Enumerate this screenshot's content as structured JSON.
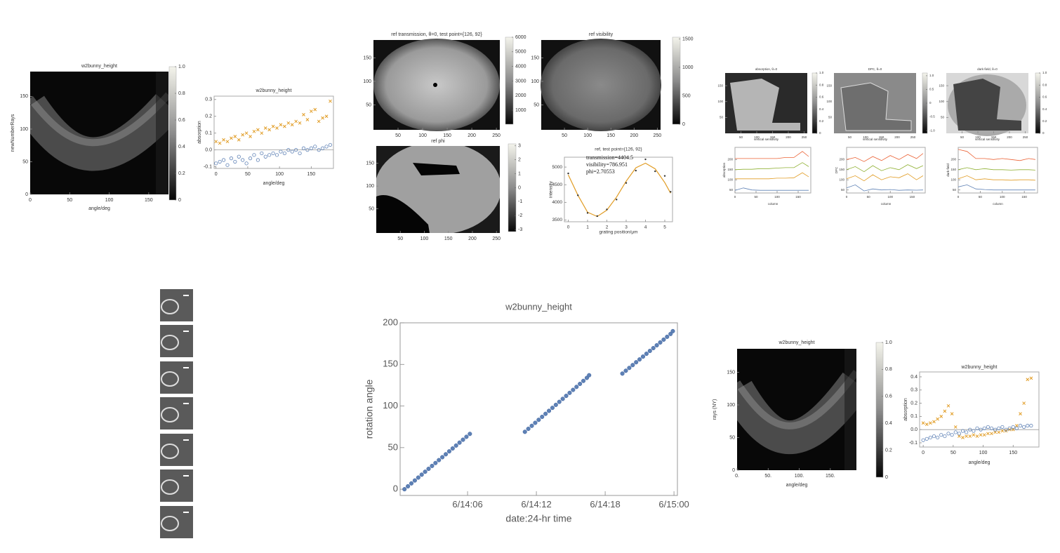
{
  "chart_data": [
    {
      "type": "heatmap",
      "title": "w2bunny_height",
      "xlabel": "angle/deg",
      "ylabel": "newNumberRays",
      "xlim": [
        0,
        175
      ],
      "xticks": [
        0,
        50,
        100,
        150
      ],
      "ylim": [
        0,
        188
      ],
      "yticks": [
        0,
        50,
        100,
        150
      ],
      "colorbar": {
        "lim": [
          0,
          1
        ],
        "ticks": [
          0,
          0.2,
          0.4,
          0.6,
          0.8,
          {
            "value": 1,
            "label": "1.0"
          }
        ]
      }
    },
    {
      "type": "scatter",
      "title": "w2bunny_height",
      "xlabel": "angle/deg",
      "ylabel": "absorption",
      "axes_origin": true,
      "xlim": [
        -3,
        185
      ],
      "xticks": [
        0,
        50,
        100,
        150
      ],
      "ylim": [
        -0.11,
        0.32
      ],
      "yticks": [
        -0.1,
        {
          "value": 0,
          "label": "0.0"
        },
        0.1,
        0.2,
        0.3
      ],
      "x": [
        0,
        6,
        12,
        18,
        24,
        30,
        36,
        42,
        48,
        54,
        60,
        66,
        72,
        78,
        84,
        90,
        96,
        102,
        108,
        114,
        120,
        126,
        132,
        138,
        144,
        150,
        156,
        162,
        168,
        174,
        180
      ],
      "series": [
        {
          "color": "#e19c24",
          "marker": "cross",
          "values": [
            0.05,
            0.04,
            0.06,
            0.05,
            0.07,
            0.08,
            0.06,
            0.09,
            0.1,
            0.08,
            0.11,
            0.12,
            0.1,
            0.13,
            0.12,
            0.14,
            0.13,
            0.15,
            0.14,
            0.16,
            0.15,
            0.17,
            0.16,
            0.21,
            0.18,
            0.23,
            0.24,
            0.17,
            0.19,
            0.2,
            0.29
          ]
        },
        {
          "color": "#5e81b5",
          "marker": "circle",
          "values": [
            -0.08,
            -0.07,
            -0.06,
            -0.09,
            -0.05,
            -0.07,
            -0.04,
            -0.06,
            -0.08,
            -0.05,
            -0.03,
            -0.06,
            -0.02,
            -0.04,
            -0.03,
            -0.02,
            -0.03,
            -0.01,
            -0.02,
            0.0,
            -0.01,
            0.0,
            -0.02,
            0.01,
            0.0,
            0.01,
            0.02,
            0.0,
            0.01,
            0.02,
            0.03
          ]
        }
      ]
    },
    {
      "type": "heatmap",
      "title": "ref transmission, θ=0, test point={126, 92}",
      "xlim": [
        0,
        257
      ],
      "xticks": [
        50,
        100,
        150,
        200,
        250
      ],
      "ylim": [
        -3,
        188
      ],
      "yticks": [
        50,
        100,
        150
      ],
      "colorbar": {
        "lim": [
          40,
          6000
        ],
        "ticks": [
          1000,
          2000,
          3000,
          4000,
          5000,
          6000
        ]
      }
    },
    {
      "type": "heatmap",
      "title": "ref visibility",
      "xlim": [
        0,
        257
      ],
      "xticks": [
        50,
        100,
        150,
        200,
        250
      ],
      "ylim": [
        -3,
        188
      ],
      "yticks": [
        50,
        100,
        150
      ],
      "colorbar": {
        "lim": [
          0,
          1530
        ],
        "ticks": [
          0,
          500,
          1000,
          1500
        ]
      }
    },
    {
      "type": "heatmap",
      "title": "ref phi",
      "xlim": [
        0,
        257
      ],
      "xticks": [
        50,
        100,
        150,
        200,
        250
      ],
      "ylim": [
        -3,
        188
      ],
      "yticks": [
        50,
        100,
        150
      ],
      "colorbar": {
        "lim": [
          -3.14,
          3.14
        ],
        "ticks": [
          -3,
          -2,
          -1,
          0,
          1,
          2,
          3
        ]
      }
    },
    {
      "type": "scatter",
      "title": "ref, test point={126, 92}",
      "xlabel": "grating position/μm",
      "ylabel": "intensity",
      "xlim": [
        -0.2,
        5.4
      ],
      "xticks": [
        0,
        1,
        2,
        3,
        4,
        5
      ],
      "ylim": [
        3450,
        5280
      ],
      "yticks": [
        3500,
        4000,
        4500,
        5000
      ],
      "annotations": [
        "transmission=4404.5",
        "visibility=786.951",
        "phi=2.70553"
      ],
      "x": [
        0,
        0.5,
        1,
        1.5,
        2,
        2.5,
        3,
        3.5,
        4,
        4.5,
        5,
        5.3
      ],
      "series": [
        {
          "color": "#e19c24",
          "marker": "line",
          "values": [
            4780,
            4200,
            3720,
            3600,
            3780,
            4150,
            4600,
            4980,
            5110,
            4950,
            4560,
            4260
          ]
        },
        {
          "color": "#333333",
          "marker": "dot",
          "values": [
            4820,
            4200,
            3700,
            3610,
            3800,
            4080,
            4550,
            4900,
            5220,
            4880,
            4750,
            4300
          ]
        }
      ]
    },
    {
      "type": "heatmap",
      "title": "absorption, θ=0",
      "xlabel": "vertical sensitivity",
      "xlim": [
        0,
        260
      ],
      "xticks": [
        50,
        100,
        150,
        200,
        250
      ],
      "ylim": [
        0,
        190
      ],
      "yticks": [
        50,
        100,
        150
      ],
      "colorbar": {
        "lim": [
          0,
          1
        ],
        "ticks": [
          0,
          0.2,
          0.4,
          0.6,
          0.8,
          {
            "value": 1,
            "label": "1.0"
          }
        ]
      }
    },
    {
      "type": "heatmap",
      "title": "DPC, θ=0",
      "xlabel": "vertical sensitivity",
      "xlim": [
        0,
        260
      ],
      "xticks": [
        50,
        100,
        150,
        200,
        250
      ],
      "ylim": [
        0,
        190
      ],
      "yticks": [
        50,
        100,
        150
      ],
      "colorbar": {
        "lim": [
          -1.1,
          1.1
        ],
        "ticks": [
          {
            "value": -1,
            "label": "-1.0"
          },
          -0.5,
          0,
          0.5,
          {
            "value": 1,
            "label": "1.0"
          }
        ]
      }
    },
    {
      "type": "heatmap",
      "title": "dark-field, θ=0",
      "xlabel": "vertical sensitivity",
      "xlim": [
        0,
        260
      ],
      "xticks": [
        50,
        100,
        150,
        200,
        250
      ],
      "ylim": [
        0,
        190
      ],
      "yticks": [
        50,
        100,
        150
      ],
      "colorbar": {
        "lim": [
          0,
          1
        ],
        "ticks": [
          0,
          0.2,
          0.4,
          0.6,
          0.8,
          {
            "value": 1,
            "label": "1.0"
          }
        ]
      }
    },
    {
      "type": "line",
      "xlabel": "column",
      "ylabel": "absorption",
      "xlim": [
        0,
        180
      ],
      "xticks": [
        0,
        50,
        100,
        150
      ],
      "ylim": [
        35,
        260
      ],
      "yticks": [
        50,
        100,
        150,
        200
      ],
      "x": [
        0,
        20,
        40,
        60,
        80,
        100,
        120,
        140,
        160,
        175
      ],
      "series": [
        {
          "color": "#eb6235",
          "values": [
            205,
            205,
            205,
            205,
            205,
            205,
            210,
            210,
            240,
            215
          ]
        },
        {
          "color": "#8fb032",
          "values": [
            150,
            152,
            152,
            155,
            155,
            158,
            160,
            160,
            185,
            165
          ]
        },
        {
          "color": "#e19c24",
          "values": [
            105,
            105,
            105,
            105,
            105,
            108,
            108,
            110,
            135,
            115
          ]
        },
        {
          "color": "#5e81b5",
          "values": [
            48,
            60,
            50,
            48,
            48,
            48,
            48,
            48,
            48,
            48
          ]
        }
      ]
    },
    {
      "type": "line",
      "xlabel": "column",
      "ylabel": "DPC",
      "xlim": [
        0,
        180
      ],
      "xticks": [
        0,
        50,
        100,
        150
      ],
      "ylim": [
        35,
        260
      ],
      "yticks": [
        50,
        100,
        150,
        200
      ],
      "x": [
        0,
        20,
        40,
        60,
        80,
        100,
        120,
        140,
        160,
        175
      ],
      "series": [
        {
          "color": "#eb6235",
          "values": [
            200,
            210,
            190,
            215,
            195,
            220,
            200,
            225,
            205,
            230
          ]
        },
        {
          "color": "#8fb032",
          "values": [
            150,
            165,
            140,
            170,
            145,
            160,
            150,
            175,
            155,
            170
          ]
        },
        {
          "color": "#e19c24",
          "values": [
            105,
            120,
            95,
            125,
            100,
            115,
            110,
            130,
            100,
            120
          ]
        },
        {
          "color": "#5e81b5",
          "values": [
            60,
            75,
            45,
            55,
            50,
            52,
            48,
            50,
            49,
            50
          ]
        }
      ]
    },
    {
      "type": "line",
      "xlabel": "column",
      "ylabel": "dark-field",
      "xlim": [
        0,
        180
      ],
      "xticks": [
        0,
        50,
        100,
        150
      ],
      "ylim": [
        35,
        260
      ],
      "yticks": [
        50,
        100,
        150,
        200
      ],
      "x": [
        0,
        20,
        40,
        60,
        80,
        100,
        120,
        140,
        160,
        175
      ],
      "series": [
        {
          "color": "#eb6235",
          "values": [
            250,
            240,
            205,
            205,
            200,
            205,
            200,
            195,
            205,
            200
          ]
        },
        {
          "color": "#8fb032",
          "values": [
            150,
            160,
            150,
            155,
            150,
            150,
            148,
            150,
            150,
            148
          ]
        },
        {
          "color": "#e19c24",
          "values": [
            105,
            120,
            100,
            105,
            100,
            100,
            98,
            100,
            100,
            98
          ]
        },
        {
          "color": "#5e81b5",
          "values": [
            65,
            75,
            55,
            52,
            50,
            50,
            50,
            50,
            50,
            50
          ]
        }
      ]
    },
    {
      "type": "scatter",
      "title": "w2bunny_height",
      "xlabel": "date:24-hr time",
      "ylabel": "rotation angle",
      "xlim": [
        0.12,
        24.3
      ],
      "xticks": [
        {
          "value": 6,
          "label": "6/14:06"
        },
        {
          "value": 12,
          "label": "6/14:12"
        },
        {
          "value": 18,
          "label": "6/14:18"
        },
        {
          "value": 24,
          "label": "6/15:00"
        }
      ],
      "ylim": [
        -7.5,
        200
      ],
      "yticks": [
        0,
        50,
        100,
        150,
        200
      ],
      "series": [
        {
          "color": "#5e81b5",
          "marker": "dot",
          "x": [
            0.5,
            0.8,
            1.1,
            1.4,
            1.7,
            2.0,
            2.3,
            2.6,
            2.9,
            3.2,
            3.5,
            3.8,
            4.1,
            4.4,
            4.7,
            5.0,
            5.3,
            5.6,
            5.9,
            6.2
          ],
          "values": [
            0,
            3.5,
            7,
            10.5,
            14,
            17.5,
            21,
            24.5,
            28,
            31.5,
            35,
            38.5,
            42,
            45.5,
            49,
            52.5,
            56,
            59.5,
            63,
            66.5
          ]
        },
        {
          "color": "#5e81b5",
          "marker": "dot",
          "x": [
            11.0,
            11.3,
            11.6,
            11.9,
            12.2,
            12.5,
            12.8,
            13.1,
            13.4,
            13.7,
            14.0,
            14.3,
            14.6,
            14.9,
            15.2,
            15.5,
            15.8,
            16.1,
            16.4,
            16.6
          ],
          "values": [
            69,
            72.6,
            76.2,
            79.8,
            83.4,
            87,
            90.6,
            94.2,
            97.8,
            101.4,
            105,
            108.6,
            112.2,
            115.8,
            119.4,
            123,
            126.6,
            130.2,
            133.8,
            137
          ]
        },
        {
          "color": "#5e81b5",
          "marker": "dot",
          "x": [
            19.5,
            19.8,
            20.1,
            20.4,
            20.7,
            21.0,
            21.3,
            21.6,
            21.9,
            22.2,
            22.5,
            22.8,
            23.1,
            23.4,
            23.7,
            23.9
          ],
          "values": [
            139,
            142.4,
            145.8,
            149.2,
            152.6,
            156,
            159.4,
            162.8,
            166.2,
            169.6,
            173,
            176.4,
            179.8,
            183.2,
            186.6,
            190
          ]
        }
      ]
    },
    {
      "type": "heatmap",
      "title": "w2bunny_height",
      "xlabel": "angle/deg",
      "ylabel": "rays (NY)",
      "xlim": [
        0,
        192
      ],
      "xticks": [
        {
          "value": 0,
          "label": "0."
        },
        {
          "value": 50,
          "label": "50."
        },
        {
          "value": 100,
          "label": "100."
        },
        {
          "value": 150,
          "label": "150."
        }
      ],
      "ylim": [
        0,
        186
      ],
      "yticks": [
        0,
        50,
        100,
        150
      ],
      "colorbar": {
        "lim": [
          0,
          1
        ],
        "ticks": [
          0,
          0.2,
          0.4,
          0.6,
          0.8,
          {
            "value": 1,
            "label": "1.0"
          }
        ]
      }
    },
    {
      "type": "scatter",
      "title": "w2bunny_height",
      "xlabel": "angle/deg",
      "ylabel": "absorption",
      "axes_origin": true,
      "xlim": [
        -6,
        193
      ],
      "xticks": [
        0,
        50,
        100,
        150
      ],
      "ylim": [
        -0.132,
        0.437
      ],
      "yticks": [
        -0.1,
        {
          "value": 0,
          "label": "0.0"
        },
        0.1,
        0.2,
        0.3,
        0.4
      ],
      "x": [
        0,
        6,
        12,
        18,
        24,
        30,
        36,
        42,
        48,
        54,
        60,
        66,
        72,
        78,
        84,
        90,
        96,
        102,
        108,
        114,
        120,
        126,
        132,
        138,
        144,
        150,
        156,
        162,
        168,
        174,
        180
      ],
      "series": [
        {
          "color": "#e19c24",
          "marker": "cross",
          "values": [
            0.05,
            0.04,
            0.05,
            0.06,
            0.08,
            0.1,
            0.14,
            0.18,
            0.12,
            0.02,
            -0.05,
            -0.06,
            -0.05,
            -0.05,
            -0.04,
            -0.05,
            -0.04,
            -0.04,
            -0.03,
            -0.03,
            -0.02,
            -0.02,
            -0.01,
            -0.01,
            0.0,
            0.0,
            0.03,
            0.12,
            0.2,
            0.38,
            0.39
          ]
        },
        {
          "color": "#5e81b5",
          "marker": "circle",
          "values": [
            -0.08,
            -0.07,
            -0.06,
            -0.05,
            -0.06,
            -0.04,
            -0.05,
            -0.03,
            -0.04,
            -0.02,
            -0.03,
            -0.01,
            -0.02,
            0.0,
            -0.01,
            0.01,
            0.0,
            0.01,
            0.02,
            0.01,
            0.0,
            0.01,
            0.02,
            0.0,
            0.01,
            0.02,
            0.01,
            0.03,
            0.02,
            0.03,
            0.03
          ]
        }
      ]
    }
  ]
}
